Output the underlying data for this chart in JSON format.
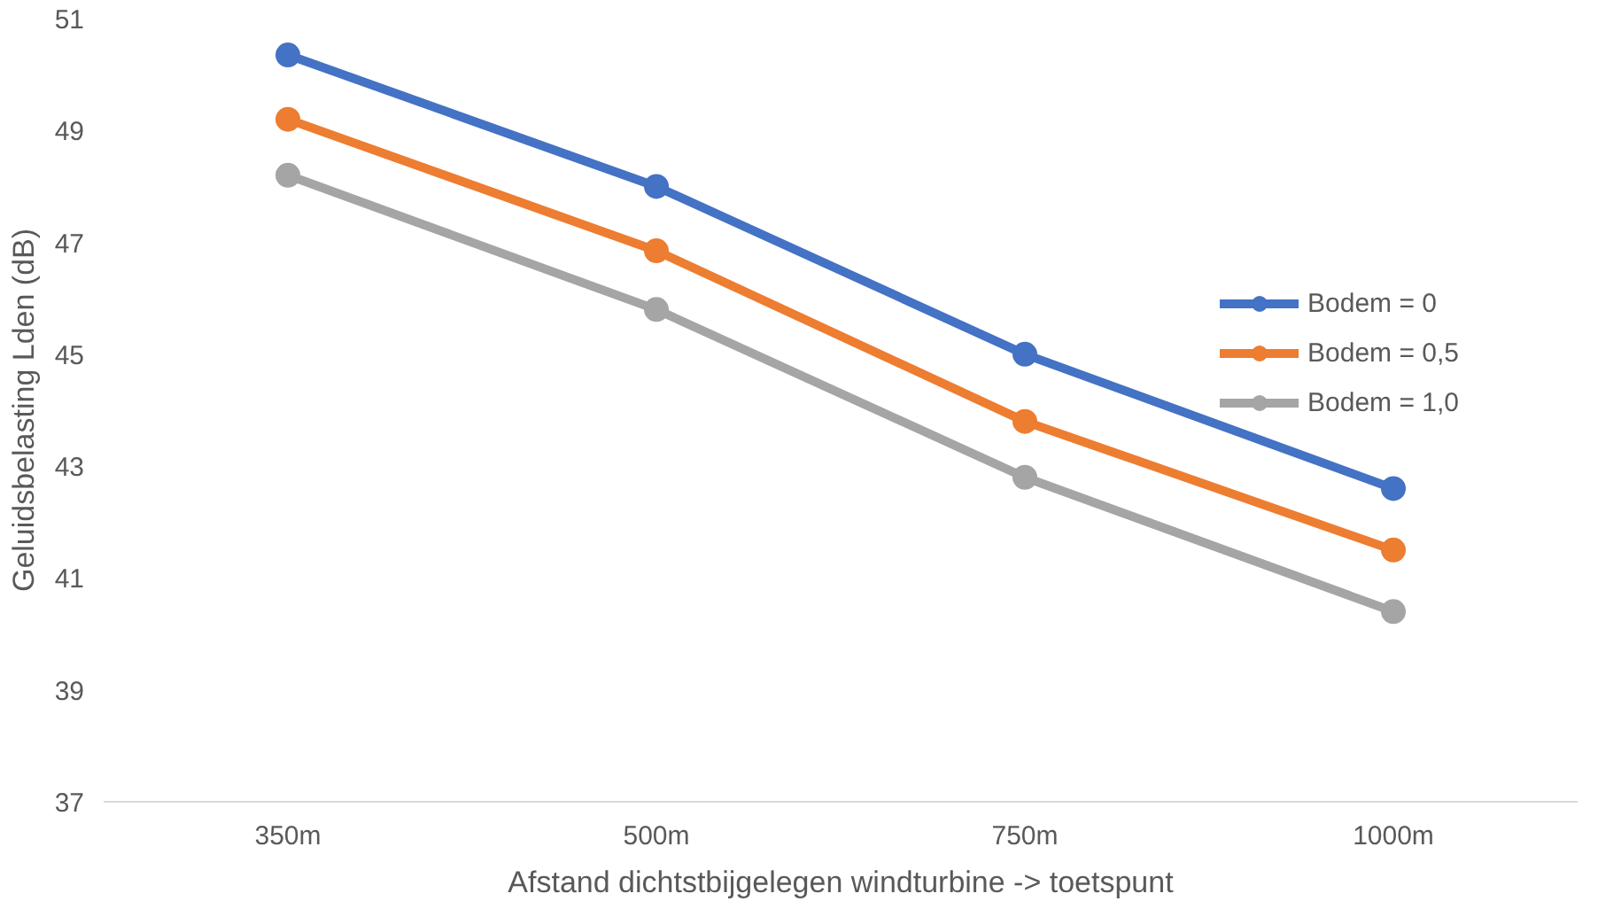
{
  "chart_data": {
    "type": "line",
    "xlabel": "Afstand dichtstbijgelegen windturbine -> toetspunt",
    "ylabel": "Geluidsbelasting Lden (dB)",
    "categories": [
      "350m",
      "500m",
      "750m",
      "1000m"
    ],
    "series": [
      {
        "name": "Bodem = 0",
        "color": "#4472c4",
        "values": [
          50.35,
          48.0,
          45.0,
          42.6
        ]
      },
      {
        "name": "Bodem = 0,5",
        "color": "#ed7d31",
        "values": [
          49.2,
          46.85,
          43.8,
          41.5
        ]
      },
      {
        "name": "Bodem = 1,0",
        "color": "#a5a5a5",
        "values": [
          48.2,
          45.8,
          42.8,
          40.4
        ]
      }
    ],
    "ylim": [
      37,
      51
    ],
    "yticks": [
      37,
      39,
      41,
      43,
      45,
      47,
      49,
      51
    ],
    "grid": false,
    "legend": "right",
    "marker": "circle",
    "line_style": "solid"
  }
}
